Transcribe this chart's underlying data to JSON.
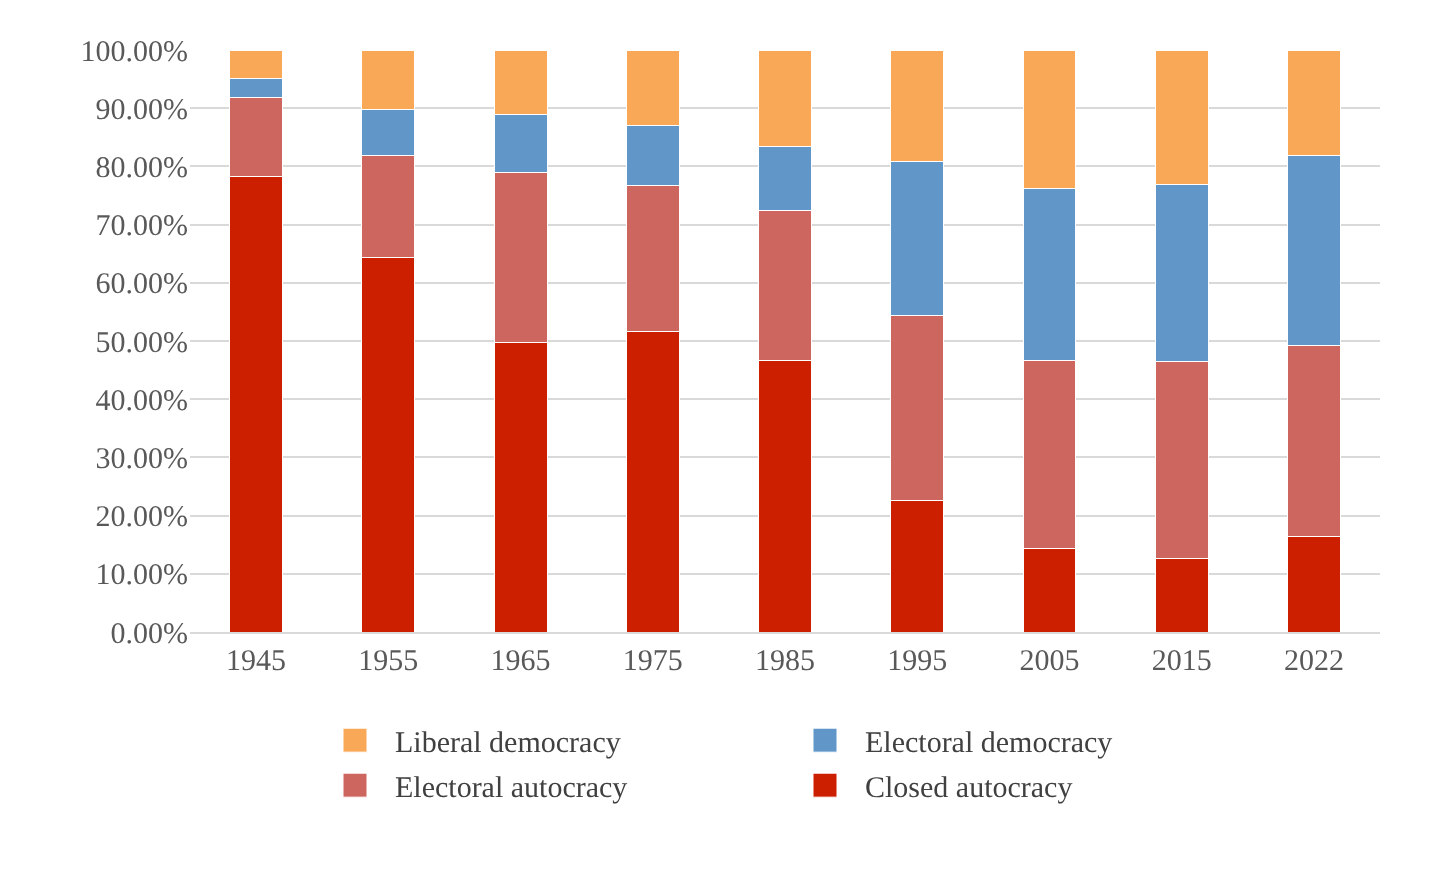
{
  "chart_data": {
    "type": "bar",
    "stacked": true,
    "categories": [
      "1945",
      "1955",
      "1965",
      "1975",
      "1985",
      "1995",
      "2005",
      "2015",
      "2022"
    ],
    "series": [
      {
        "name": "Closed autocracy",
        "color": "#cc1f00",
        "values": [
          78.2,
          64.4,
          49.8,
          51.6,
          46.7,
          22.6,
          14.4,
          12.7,
          16.4
        ]
      },
      {
        "name": "Electoral autocracy",
        "color": "#cd665e",
        "values": [
          13.7,
          17.4,
          29.1,
          25.1,
          25.8,
          31.8,
          32.3,
          33.8,
          32.9
        ]
      },
      {
        "name": "Electoral democracy",
        "color": "#6096c8",
        "values": [
          3.2,
          7.9,
          10.1,
          10.3,
          10.9,
          26.5,
          29.5,
          30.4,
          32.5
        ]
      },
      {
        "name": "Liberal democracy",
        "color": "#f9a857",
        "values": [
          4.9,
          10.3,
          11.0,
          13.0,
          16.6,
          19.1,
          23.8,
          23.1,
          18.2
        ]
      }
    ],
    "ylim": [
      0,
      100
    ],
    "yticks": [
      {
        "value": 0,
        "label": "0.00%"
      },
      {
        "value": 10,
        "label": "10.00%"
      },
      {
        "value": 20,
        "label": "20.00%"
      },
      {
        "value": 30,
        "label": "30.00%"
      },
      {
        "value": 40,
        "label": "40.00%"
      },
      {
        "value": 50,
        "label": "50.00%"
      },
      {
        "value": 60,
        "label": "60.00%"
      },
      {
        "value": 70,
        "label": "70.00%"
      },
      {
        "value": 80,
        "label": "80.00%"
      },
      {
        "value": 90,
        "label": "90.00%"
      },
      {
        "value": 100,
        "label": "100.00%"
      }
    ],
    "grid": "y",
    "legend": "bottom"
  }
}
